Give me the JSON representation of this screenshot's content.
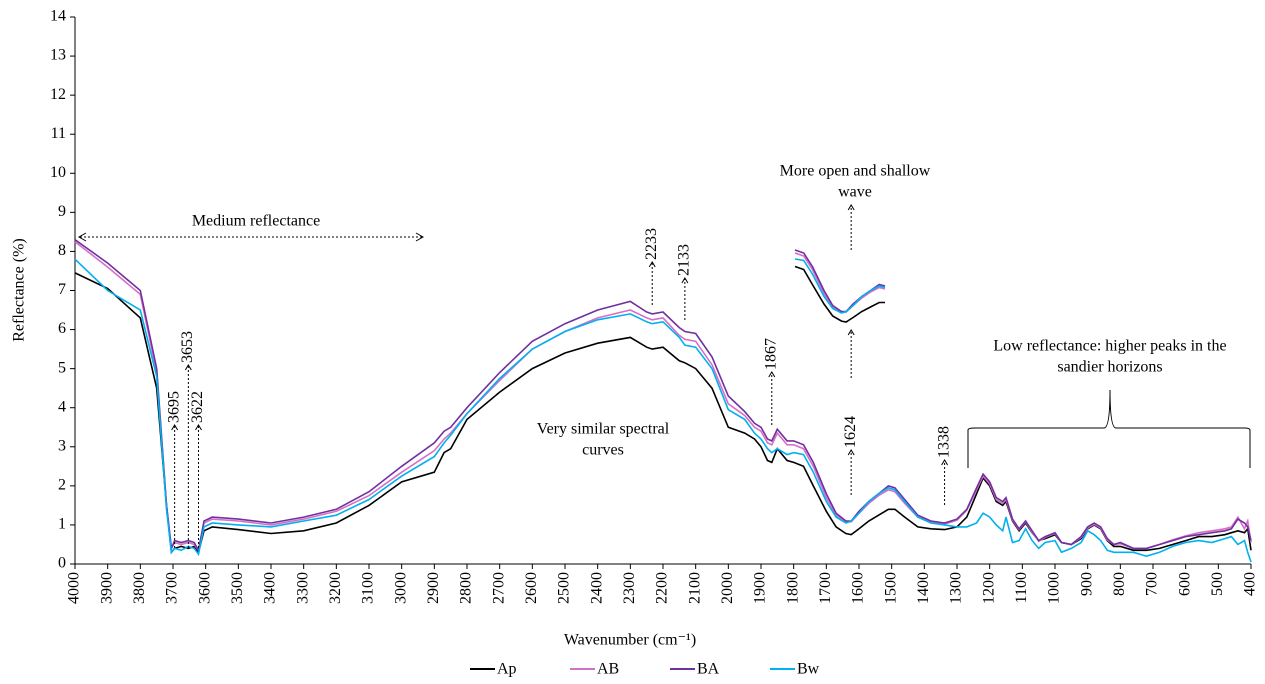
{
  "chart_data": {
    "type": "line",
    "x_label": "Wavenumber (cm⁻¹)",
    "y_label": "Reflectance (%)",
    "xlim": [
      4000,
      400
    ],
    "ylim": [
      0,
      14
    ],
    "xticks": [
      4000,
      3900,
      3800,
      3700,
      3600,
      3500,
      3400,
      3300,
      3200,
      3100,
      3000,
      2900,
      2800,
      2700,
      2600,
      2500,
      2400,
      2300,
      2200,
      2100,
      2000,
      1900,
      1800,
      1700,
      1600,
      1500,
      1400,
      1300,
      1200,
      1100,
      1000,
      900,
      800,
      700,
      600,
      500,
      400
    ],
    "yticks": [
      0,
      1,
      2,
      3,
      4,
      5,
      6,
      7,
      8,
      9,
      10,
      11,
      12,
      13,
      14
    ],
    "x": [
      4000,
      3900,
      3800,
      3750,
      3720,
      3705,
      3695,
      3675,
      3653,
      3635,
      3622,
      3605,
      3580,
      3500,
      3400,
      3300,
      3200,
      3100,
      3000,
      2900,
      2870,
      2850,
      2800,
      2700,
      2600,
      2500,
      2400,
      2300,
      2250,
      2233,
      2200,
      2150,
      2133,
      2100,
      2050,
      2000,
      1950,
      1920,
      1900,
      1880,
      1867,
      1850,
      1820,
      1800,
      1770,
      1740,
      1700,
      1670,
      1640,
      1624,
      1600,
      1570,
      1540,
      1510,
      1490,
      1460,
      1420,
      1380,
      1338,
      1300,
      1270,
      1240,
      1220,
      1200,
      1180,
      1160,
      1150,
      1130,
      1110,
      1090,
      1070,
      1050,
      1030,
      1000,
      980,
      950,
      920,
      900,
      880,
      860,
      840,
      820,
      800,
      760,
      720,
      680,
      640,
      600,
      560,
      520,
      480,
      460,
      440,
      420,
      410,
      400
    ],
    "series": [
      {
        "name": "Ap",
        "color": "#000000",
        "values": [
          7.45,
          7.05,
          6.3,
          4.5,
          1.5,
          0.3,
          0.4,
          0.45,
          0.4,
          0.45,
          0.3,
          0.85,
          0.95,
          0.88,
          0.78,
          0.85,
          1.05,
          1.5,
          2.1,
          2.35,
          2.85,
          2.95,
          3.7,
          4.4,
          5.0,
          5.4,
          5.65,
          5.8,
          5.55,
          5.5,
          5.55,
          5.2,
          5.15,
          5.0,
          4.5,
          3.5,
          3.35,
          3.2,
          3.0,
          2.65,
          2.6,
          2.95,
          2.65,
          2.6,
          2.5,
          2.0,
          1.35,
          0.95,
          0.78,
          0.75,
          0.9,
          1.1,
          1.25,
          1.4,
          1.4,
          1.2,
          0.95,
          0.9,
          0.88,
          0.95,
          1.2,
          1.8,
          2.2,
          2.0,
          1.6,
          1.5,
          1.6,
          1.1,
          0.85,
          1.05,
          0.8,
          0.6,
          0.65,
          0.75,
          0.55,
          0.5,
          0.65,
          0.9,
          1.0,
          0.9,
          0.6,
          0.45,
          0.45,
          0.35,
          0.35,
          0.4,
          0.5,
          0.6,
          0.7,
          0.7,
          0.75,
          0.8,
          0.85,
          0.8,
          0.9,
          0.35
        ]
      },
      {
        "name": "AB",
        "color": "#d66fc6",
        "values": [
          8.25,
          7.6,
          6.9,
          4.9,
          1.5,
          0.4,
          0.55,
          0.5,
          0.55,
          0.5,
          0.35,
          1.05,
          1.15,
          1.1,
          1.0,
          1.15,
          1.35,
          1.75,
          2.35,
          2.9,
          3.2,
          3.35,
          3.85,
          4.7,
          5.5,
          5.95,
          6.3,
          6.5,
          6.3,
          6.25,
          6.3,
          5.85,
          5.75,
          5.7,
          5.1,
          4.1,
          3.8,
          3.5,
          3.4,
          3.1,
          3.05,
          3.35,
          3.05,
          3.05,
          2.95,
          2.5,
          1.7,
          1.25,
          1.08,
          1.08,
          1.3,
          1.55,
          1.75,
          1.9,
          1.85,
          1.55,
          1.2,
          1.08,
          1.02,
          1.12,
          1.38,
          1.9,
          2.25,
          2.05,
          1.65,
          1.55,
          1.65,
          1.12,
          0.88,
          1.08,
          0.82,
          0.58,
          0.68,
          0.78,
          0.55,
          0.5,
          0.68,
          0.92,
          1.02,
          0.92,
          0.62,
          0.5,
          0.52,
          0.4,
          0.4,
          0.5,
          0.62,
          0.72,
          0.8,
          0.85,
          0.9,
          0.95,
          1.2,
          0.9,
          1.1,
          0.55
        ]
      },
      {
        "name": "BA",
        "color": "#7030a0",
        "values": [
          8.3,
          7.7,
          7.0,
          5.0,
          1.5,
          0.4,
          0.6,
          0.55,
          0.6,
          0.55,
          0.35,
          1.1,
          1.2,
          1.15,
          1.05,
          1.2,
          1.4,
          1.85,
          2.5,
          3.1,
          3.4,
          3.5,
          4.0,
          4.9,
          5.7,
          6.15,
          6.5,
          6.72,
          6.45,
          6.4,
          6.45,
          6.05,
          5.95,
          5.9,
          5.3,
          4.3,
          3.9,
          3.6,
          3.5,
          3.2,
          3.15,
          3.45,
          3.15,
          3.15,
          3.05,
          2.6,
          1.8,
          1.3,
          1.1,
          1.1,
          1.35,
          1.6,
          1.8,
          2.0,
          1.95,
          1.65,
          1.25,
          1.1,
          1.05,
          1.15,
          1.4,
          1.95,
          2.3,
          2.1,
          1.7,
          1.6,
          1.7,
          1.15,
          0.9,
          1.1,
          0.85,
          0.6,
          0.7,
          0.8,
          0.55,
          0.5,
          0.7,
          0.95,
          1.05,
          0.95,
          0.65,
          0.5,
          0.55,
          0.4,
          0.4,
          0.5,
          0.6,
          0.7,
          0.75,
          0.8,
          0.85,
          0.9,
          1.15,
          1.05,
          0.95,
          0.6
        ]
      },
      {
        "name": "Bw",
        "color": "#00b0f0",
        "values": [
          7.8,
          7.0,
          6.5,
          4.8,
          1.4,
          0.3,
          0.4,
          0.35,
          0.45,
          0.4,
          0.25,
          0.95,
          1.05,
          1.0,
          0.95,
          1.1,
          1.25,
          1.65,
          2.25,
          2.75,
          3.1,
          3.3,
          3.85,
          4.75,
          5.5,
          5.95,
          6.25,
          6.4,
          6.2,
          6.15,
          6.2,
          5.8,
          5.6,
          5.55,
          5.0,
          3.95,
          3.7,
          3.35,
          3.2,
          2.95,
          2.85,
          2.95,
          2.8,
          2.85,
          2.8,
          2.35,
          1.6,
          1.2,
          1.05,
          1.1,
          1.3,
          1.6,
          1.8,
          1.95,
          1.9,
          1.6,
          1.2,
          1.05,
          1.0,
          0.95,
          0.95,
          1.05,
          1.3,
          1.2,
          1.0,
          0.85,
          1.2,
          0.55,
          0.6,
          0.9,
          0.6,
          0.4,
          0.55,
          0.6,
          0.3,
          0.4,
          0.55,
          0.85,
          0.75,
          0.6,
          0.35,
          0.3,
          0.3,
          0.3,
          0.2,
          0.3,
          0.45,
          0.55,
          0.6,
          0.55,
          0.65,
          0.7,
          0.5,
          0.6,
          0.3,
          0.05
        ]
      }
    ],
    "peaks": [
      3695,
      3653,
      3622,
      2233,
      2133,
      1867,
      1624,
      1338
    ],
    "annotations": {
      "medium": [
        "Medium reflectance"
      ],
      "wave": [
        "More open and shallow",
        "wave"
      ],
      "similar": [
        "Very similar spectral",
        "curves"
      ],
      "low": [
        "Low reflectance: higher peaks in the",
        "sandier horizons"
      ]
    }
  }
}
